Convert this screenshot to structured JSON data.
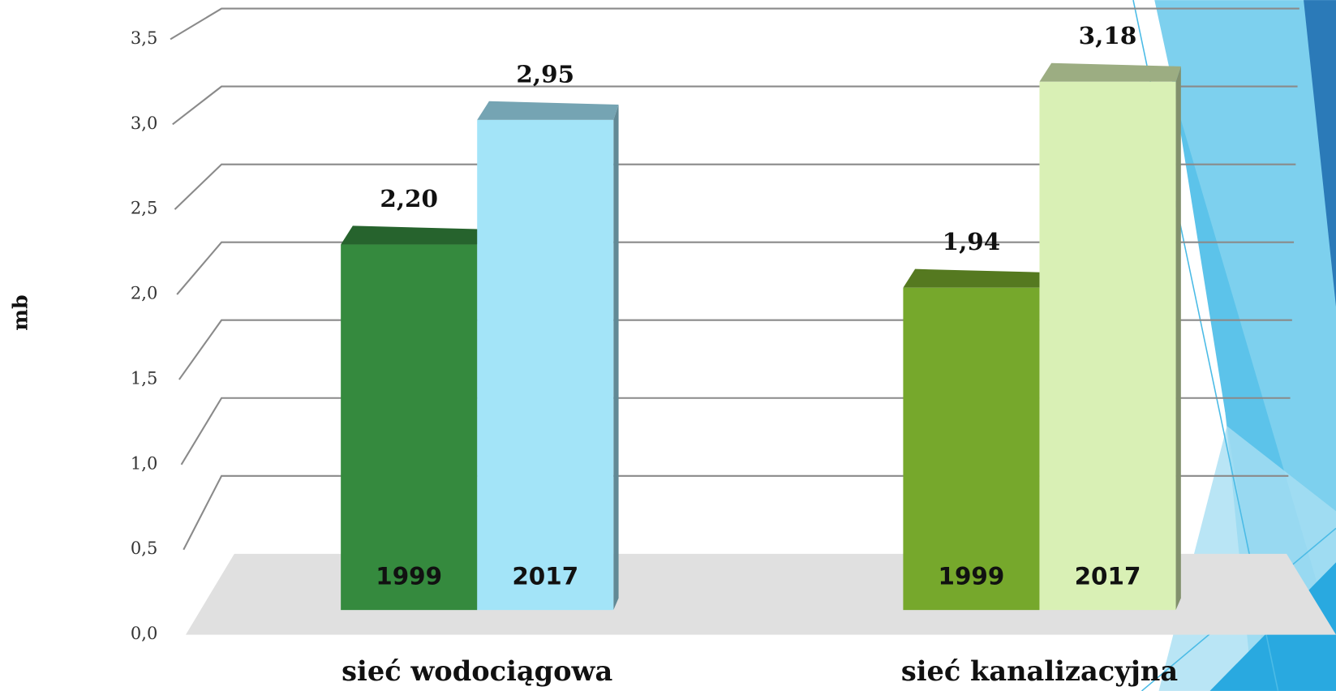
{
  "chart_data": {
    "type": "bar3d",
    "y_label": "mb",
    "categories": [
      "sieć wodociągowa",
      "sieć kanalizacyjna"
    ],
    "series": [
      {
        "name": "1999",
        "values": [
          2.2,
          1.94
        ],
        "value_labels": [
          "2,20",
          "1,94"
        ],
        "colors": [
          "#358a3e",
          "#76a82c"
        ]
      },
      {
        "name": "2017",
        "values": [
          2.95,
          3.18
        ],
        "value_labels": [
          "2,95",
          "3,18"
        ],
        "colors": [
          "#a3e4f8",
          "#d9f0b5"
        ]
      }
    ],
    "ylim": [
      0,
      3.5
    ],
    "yticks": [
      {
        "value": 0,
        "label": "0,0"
      },
      {
        "value": 0.5,
        "label": "0,5"
      },
      {
        "value": 1,
        "label": "1,0"
      },
      {
        "value": 1.5,
        "label": "1,5"
      },
      {
        "value": 2,
        "label": "2,0"
      },
      {
        "value": 2.5,
        "label": "2,5"
      },
      {
        "value": 3,
        "label": "3,0"
      },
      {
        "value": 3.5,
        "label": "3,5"
      }
    ],
    "grid": true
  }
}
